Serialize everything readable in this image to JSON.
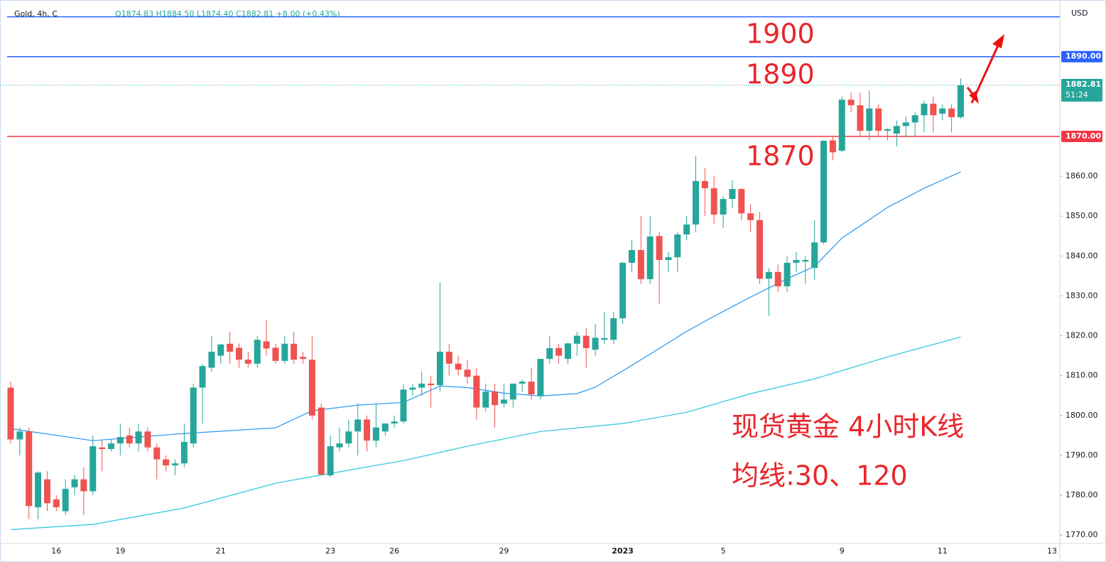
{
  "chart_data": {
    "type": "candlestick",
    "symbol": "Gold, 4h, C",
    "ohlc_text": "O1874.83 H1884.50 L1874.40 C1882.81 +8.00 (+0.43%)",
    "currency": "USD",
    "annotations": [
      "1900",
      "1890",
      "1870",
      "现货黄金 4小时K线",
      "均线:30、120"
    ],
    "categories": [
      null,
      null,
      null,
      null,
      null,
      "16",
      null,
      null,
      null,
      null,
      null,
      null,
      "19",
      null,
      null,
      null,
      null,
      null,
      null,
      null,
      null,
      null,
      null,
      "21",
      null,
      null,
      null,
      null,
      null,
      null,
      null,
      null,
      null,
      null,
      null,
      "23",
      null,
      null,
      null,
      null,
      null,
      null,
      "26",
      null,
      null,
      null,
      null,
      null,
      null,
      null,
      null,
      null,
      null,
      null,
      "29",
      null,
      null,
      null,
      null,
      null,
      null,
      null,
      null,
      null,
      null,
      null,
      null,
      "2023",
      null,
      null,
      null,
      null,
      null,
      null,
      null,
      null,
      null,
      null,
      "5",
      null,
      null,
      null,
      null,
      null,
      null,
      null,
      null,
      null,
      null,
      null,
      null,
      "9",
      null,
      null,
      null,
      null,
      null,
      null,
      null,
      null,
      null,
      null,
      "11",
      null,
      null,
      null,
      null,
      null,
      null,
      null,
      null,
      null,
      null,
      null,
      "13"
    ],
    "open": [
      1807,
      1794,
      1796,
      1777,
      1784,
      1779,
      1776,
      1782,
      1784,
      1781,
      1792,
      1791.6,
      1793,
      1795,
      1793,
      1796,
      1792,
      1789,
      1787.5,
      1788,
      1793,
      1807,
      1812,
      1815,
      1818,
      1817,
      1814,
      1813,
      1818.6,
      1817,
      1813.7,
      1818,
      1814.7,
      1814,
      1802,
      1785,
      1792,
      1793,
      1796,
      1799,
      1793.7,
      1796,
      1798,
      1798.5,
      1806.5,
      1807,
      1808,
      1807.6,
      1816,
      1813,
      1811.5,
      1810,
      1802,
      1806,
      1803,
      1804,
      1808,
      1808.5,
      1805,
      1814.2,
      1816.9,
      1814.2,
      1818,
      1820,
      1816.5,
      1819,
      1819,
      1824.4,
      1838.3,
      1841.5,
      1834.2,
      1845,
      1839,
      1839.7,
      1845.4,
      1847.9,
      1858.8,
      1857,
      1850.4,
      1854.3,
      1856.8,
      1850.7,
      1849,
      1834.3,
      1836,
      1832.4,
      1838.3,
      1838.6,
      1837,
      1843.4,
      1869,
      1866.4,
      1879.2,
      1877.8,
      1871.4,
      1877,
      1871.4,
      1870.7,
      1872.6,
      1873.5,
      1875.3,
      1878.2,
      1875.7,
      1877,
      1874.83,
      null,
      null,
      null,
      null,
      null,
      null,
      null,
      null,
      null,
      null
    ],
    "high": [
      1808.5,
      1797,
      1797,
      1786,
      1786,
      1780,
      1784,
      1785,
      1787,
      1795,
      1794,
      1794,
      1798,
      1797,
      1798,
      1797,
      1793,
      1790,
      1789,
      1798,
      1808,
      1813,
      1820,
      1818,
      1821,
      1818,
      1816,
      1820,
      1824,
      1818,
      1820,
      1821,
      1816,
      1820,
      1803,
      1795,
      1797,
      1799,
      1803,
      1800,
      1803,
      1798,
      1800,
      1808,
      1808,
      1811,
      1810,
      1833.4,
      1818,
      1815,
      1814,
      1812,
      1808,
      1808,
      1808,
      1808,
      1809,
      1812,
      1814,
      1820,
      1818,
      1818,
      1821,
      1822,
      1823,
      1826,
      1826,
      1838.5,
      1844,
      1850,
      1850,
      1846,
      1841,
      1846,
      1850,
      1865,
      1862,
      1860,
      1855,
      1859,
      1857,
      1853,
      1851,
      1837,
      1838,
      1840,
      1841,
      1840,
      1849,
      1869,
      1870,
      1880,
      1881,
      1881,
      1881.5,
      1878,
      1872,
      1874,
      1875,
      1876,
      1879,
      1880,
      1878,
      1878,
      1884.5,
      null,
      null,
      null,
      null,
      null,
      null,
      null,
      null,
      null,
      null
    ],
    "low": [
      1793,
      1790,
      1774,
      1774,
      1776,
      1776,
      1775,
      1780,
      1775,
      1780,
      1786,
      1791,
      1790,
      1792,
      1791,
      1791,
      1784,
      1786,
      1785,
      1787,
      1792,
      1798,
      1811,
      1813,
      1813,
      1812,
      1812,
      1812,
      1815,
      1813,
      1813,
      1813,
      1813,
      1799,
      1785,
      1784.5,
      1791,
      1792,
      1790,
      1791,
      1792,
      1795,
      1797,
      1798,
      1805,
      1805,
      1802,
      1806,
      1810,
      1810,
      1808,
      1799,
      1801,
      1797,
      1802,
      1802,
      1806,
      1804,
      1804,
      1813,
      1813,
      1813,
      1815,
      1812,
      1815,
      1818,
      1818,
      1823,
      1836,
      1833,
      1833,
      1828,
      1836,
      1836,
      1844,
      1846,
      1850,
      1848,
      1847,
      1852,
      1849,
      1846,
      1833,
      1825,
      1831,
      1831,
      1836,
      1833,
      1834,
      1843,
      1864,
      1866,
      1876,
      1870,
      1869,
      1870,
      1869,
      1867.5,
      1870,
      1870,
      1871,
      1871,
      1874,
      1871,
      1874.4,
      null,
      null,
      null,
      null,
      null,
      null,
      null,
      null,
      null,
      null
    ],
    "close": [
      1794,
      1796,
      1777.3,
      1785.7,
      1778,
      1777,
      1781.6,
      1784,
      1781,
      1792.3,
      1791.6,
      1793,
      1794.6,
      1793,
      1796,
      1792,
      1789,
      1787.5,
      1788,
      1793.4,
      1807,
      1812.4,
      1816,
      1817.8,
      1816,
      1814,
      1813,
      1819,
      1816.8,
      1813.7,
      1818,
      1814,
      1814.2,
      1800,
      1785.2,
      1792.3,
      1793,
      1796,
      1799,
      1793.7,
      1797,
      1798,
      1798.5,
      1806.5,
      1807,
      1808,
      1807.6,
      1816,
      1813,
      1811.5,
      1809.7,
      1802,
      1806,
      1802.6,
      1804,
      1808,
      1808.5,
      1805.3,
      1814.2,
      1816.9,
      1815,
      1818.1,
      1820,
      1816.9,
      1819.5,
      1819.4,
      1824.4,
      1838.3,
      1841.5,
      1834.2,
      1844.9,
      1839,
      1839.7,
      1845.4,
      1847.9,
      1858.8,
      1857,
      1850.4,
      1854.3,
      1856.8,
      1850.7,
      1849,
      1834.3,
      1836,
      1832.4,
      1838.3,
      1839,
      1839,
      1843.4,
      1868.9,
      1866,
      1879.2,
      1877.8,
      1871.4,
      1877,
      1871.4,
      1871.8,
      1872.6,
      1873.5,
      1875.3,
      1878.2,
      1875.3,
      1877,
      1874.8,
      1882.81,
      null,
      null,
      null,
      null,
      null,
      null,
      null,
      null,
      null,
      null
    ],
    "up_color": "#26a69a",
    "down_color": "#ef5350",
    "moving_averages": [
      {
        "color": "#2196f3",
        "x": [
          0,
          9,
          19,
          29,
          33,
          38,
          43,
          47,
          50,
          54,
          58,
          62,
          64,
          67,
          70,
          74,
          77,
          81,
          85,
          88,
          91,
          96,
          100,
          104
        ],
        "values": [
          1796.7,
          1793.7,
          1795.5,
          1796.9,
          1801.2,
          1802.6,
          1803.3,
          1807.4,
          1807,
          1805.6,
          1804.9,
          1805.5,
          1807.1,
          1811.2,
          1815.4,
          1821.1,
          1824.9,
          1829.7,
          1834.3,
          1837.4,
          1844.5,
          1852.2,
          1857,
          1861.1
        ]
      },
      {
        "color": "#26c6da",
        "x": [
          0,
          9,
          19,
          29,
          34,
          43,
          50,
          58,
          67,
          74,
          81,
          88,
          96,
          104
        ],
        "values": [
          1771.4,
          1772.7,
          1776.8,
          1783,
          1785.1,
          1788.7,
          1792.3,
          1796,
          1798,
          1800.8,
          1805.5,
          1809.2,
          1814.7,
          1819.7
        ]
      }
    ],
    "horizontal_lines": [
      {
        "value": 1900,
        "color": "#2962ff"
      },
      {
        "value": 1890,
        "color": "#2962ff",
        "label": "1890.00"
      },
      {
        "value": 1870,
        "color": "#f23645",
        "label": "1870.00"
      }
    ],
    "last_price": {
      "value": 1882.81,
      "label": "1882.81",
      "countdown": "51:24",
      "color": "#26a69a"
    },
    "ylim": [
      1767.9,
      1904.2
    ],
    "yticks": [
      {
        "value": 1770,
        "label": "1770.00"
      },
      {
        "value": 1780,
        "label": "1780.00"
      },
      {
        "value": 1790,
        "label": "1790.00"
      },
      {
        "value": 1800,
        "label": "1800.00"
      },
      {
        "value": 1810,
        "label": "1810.00"
      },
      {
        "value": 1820,
        "label": "1820.00"
      },
      {
        "value": 1830,
        "label": "1830.00"
      },
      {
        "value": 1840,
        "label": "1840.00"
      },
      {
        "value": 1850,
        "label": "1850.00"
      },
      {
        "value": 1860,
        "label": "1860.00"
      }
    ],
    "grid": false
  }
}
